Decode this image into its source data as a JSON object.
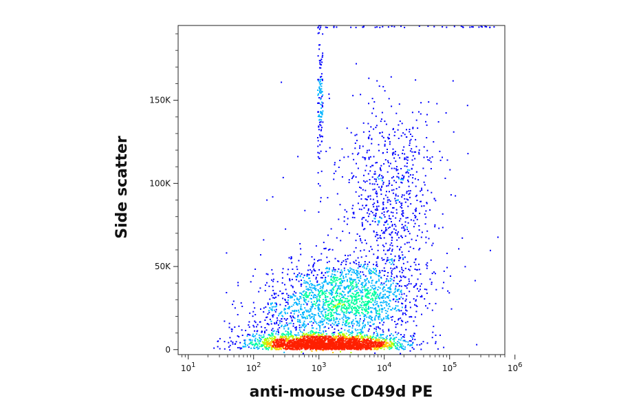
{
  "chart_data": {
    "type": "scatter",
    "subtype": "flow cytometry density dot plot",
    "xlabel": "anti-mouse CD49d PE",
    "ylabel": "Side scatter",
    "x_scale": "log",
    "xlim": [
      7,
      700000
    ],
    "ylim": [
      -3000,
      195000
    ],
    "x_ticks": [
      {
        "value": 10,
        "base": "10",
        "exp": "1"
      },
      {
        "value": 100,
        "base": "10",
        "exp": "2"
      },
      {
        "value": 1000,
        "base": "10",
        "exp": "3"
      },
      {
        "value": 10000,
        "base": "10",
        "exp": "4"
      },
      {
        "value": 100000,
        "base": "10",
        "exp": "5"
      },
      {
        "value": 1000000,
        "base": "10",
        "exp": "6"
      }
    ],
    "y_ticks": [
      {
        "value": 0,
        "label": "0"
      },
      {
        "value": 50000,
        "label": "50K"
      },
      {
        "value": 100000,
        "label": "100K"
      },
      {
        "value": 150000,
        "label": "150K"
      }
    ],
    "grid": false,
    "legend": "none",
    "density_colormap": [
      "#0000ff",
      "#00b4ff",
      "#00ffa0",
      "#b4ff00",
      "#ffc800",
      "#ff2000"
    ],
    "populations": [
      {
        "id": "main",
        "x_center": 1300,
        "y_center": 5000,
        "count": 2600
      },
      {
        "id": "diffuse",
        "x_center": 2500,
        "y_center": 30000,
        "count": 1700
      },
      {
        "id": "high",
        "x_center": 12000,
        "y_center": 90000,
        "count": 750
      },
      {
        "id": "column",
        "x_center": 1050,
        "y_center": 150000,
        "count": 130
      },
      {
        "id": "low_left",
        "x_center": 250,
        "y_center": 12000,
        "count": 220
      },
      {
        "id": "sparse",
        "x_center": 10000,
        "y_center": 60000,
        "count": 90
      }
    ]
  }
}
